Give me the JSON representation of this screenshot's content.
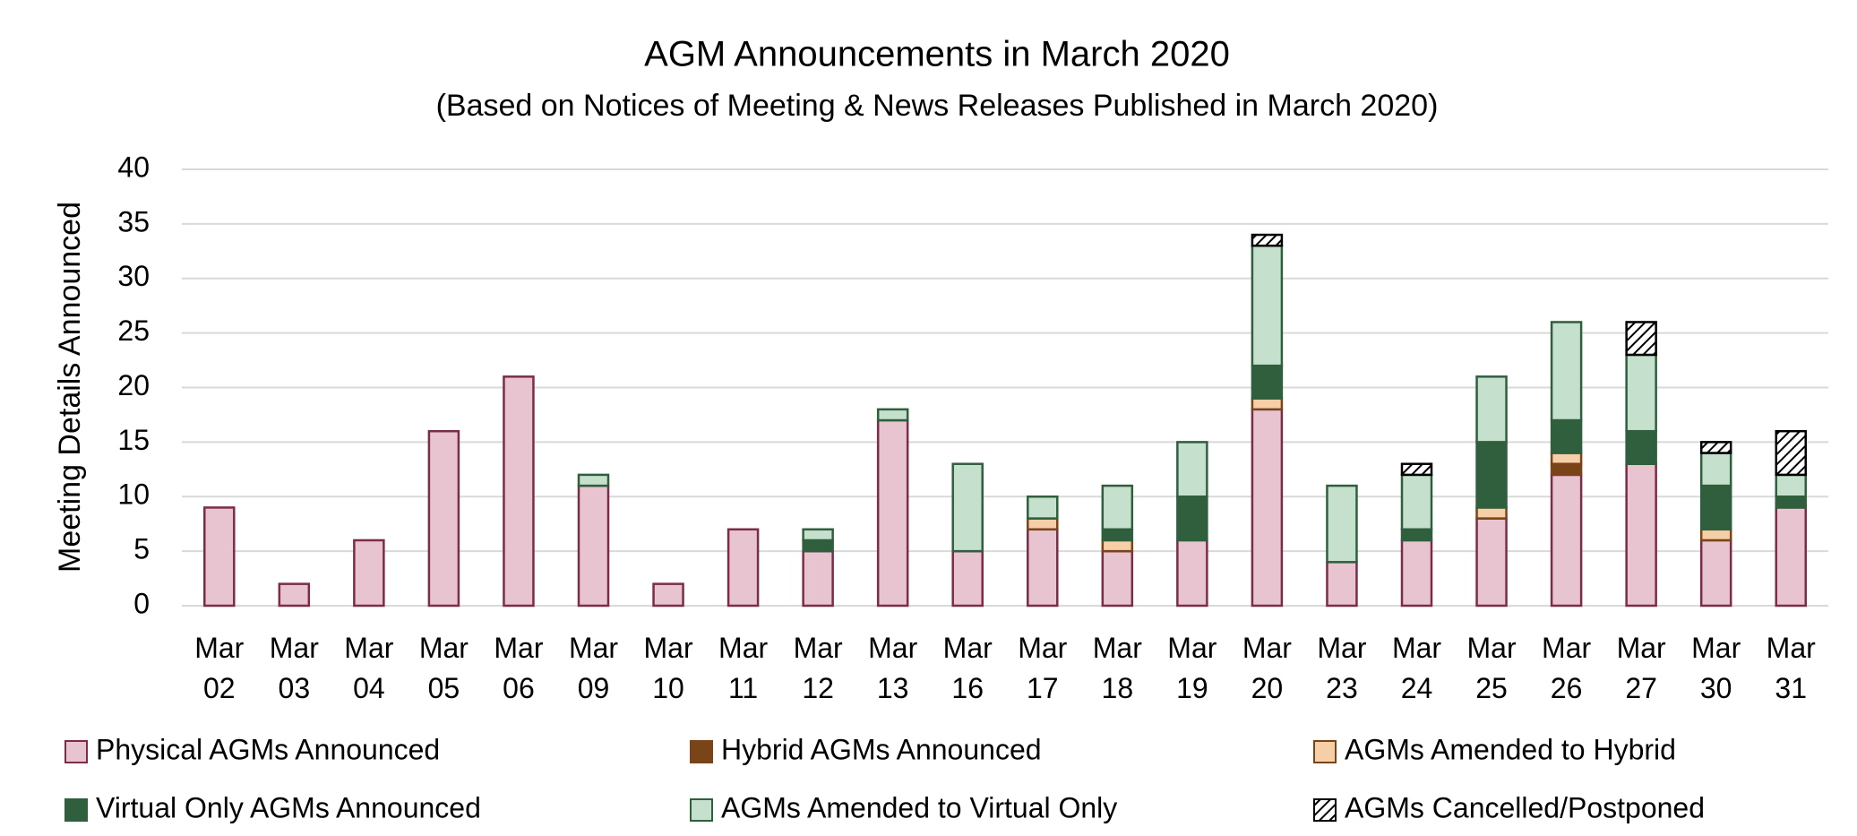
{
  "chart_data": {
    "type": "stacked_bar",
    "title": "AGM Announcements in March 2020",
    "subtitle": "(Based on Notices of Meeting & News Releases Published in March 2020)",
    "y_label": "Meeting Details Announced",
    "categories": [
      "Mar 02",
      "Mar 03",
      "Mar 04",
      "Mar 05",
      "Mar 06",
      "Mar 09",
      "Mar 10",
      "Mar 11",
      "Mar 12",
      "Mar 13",
      "Mar 16",
      "Mar 17",
      "Mar 18",
      "Mar 19",
      "Mar 20",
      "Mar 23",
      "Mar 24",
      "Mar 25",
      "Mar 26",
      "Mar 27",
      "Mar 30",
      "Mar 31"
    ],
    "series": [
      {
        "name": "Physical AGMs Announced",
        "color": "#e8c3d0",
        "edgecolor": "#7b2c47",
        "values": [
          9,
          2,
          6,
          16,
          21,
          11,
          2,
          7,
          5,
          17,
          5,
          7,
          5,
          6,
          18,
          4,
          6,
          8,
          12,
          13,
          6,
          9
        ]
      },
      {
        "name": "Hybrid AGMs Announced",
        "color": "#7a4419",
        "edgecolor": "#7a4419",
        "values": [
          0,
          0,
          0,
          0,
          0,
          0,
          0,
          0,
          0,
          0,
          0,
          0,
          0,
          0,
          0,
          0,
          0,
          0,
          1,
          0,
          0,
          0
        ]
      },
      {
        "name": "AGMs Amended to Hybrid",
        "color": "#f6cfa8",
        "edgecolor": "#7a4419",
        "values": [
          0,
          0,
          0,
          0,
          0,
          0,
          0,
          0,
          0,
          0,
          0,
          1,
          1,
          0,
          1,
          0,
          0,
          1,
          1,
          0,
          1,
          0
        ]
      },
      {
        "name": "Virtual Only AGMs Announced",
        "color": "#2f5f3d",
        "edgecolor": "#2f5f3d",
        "values": [
          0,
          0,
          0,
          0,
          0,
          0,
          0,
          0,
          1,
          0,
          0,
          0,
          1,
          4,
          3,
          0,
          1,
          6,
          3,
          3,
          4,
          1
        ]
      },
      {
        "name": "AGMs Amended to Virtual Only",
        "color": "#c5e0cc",
        "edgecolor": "#2f5f3d",
        "values": [
          0,
          0,
          0,
          0,
          0,
          1,
          0,
          0,
          1,
          1,
          8,
          2,
          4,
          5,
          11,
          7,
          5,
          6,
          9,
          7,
          3,
          2
        ]
      },
      {
        "name": "AGMs Cancelled/Postponed",
        "color": "#000000",
        "edgecolor": "#000000",
        "hatch": true,
        "values": [
          0,
          0,
          0,
          0,
          0,
          0,
          0,
          0,
          0,
          0,
          0,
          0,
          0,
          0,
          1,
          0,
          1,
          0,
          0,
          3,
          1,
          4
        ]
      }
    ],
    "ylim": [
      0,
      40
    ],
    "yticks": [
      0,
      5,
      10,
      15,
      20,
      25,
      30,
      35,
      40
    ],
    "grid": true
  }
}
